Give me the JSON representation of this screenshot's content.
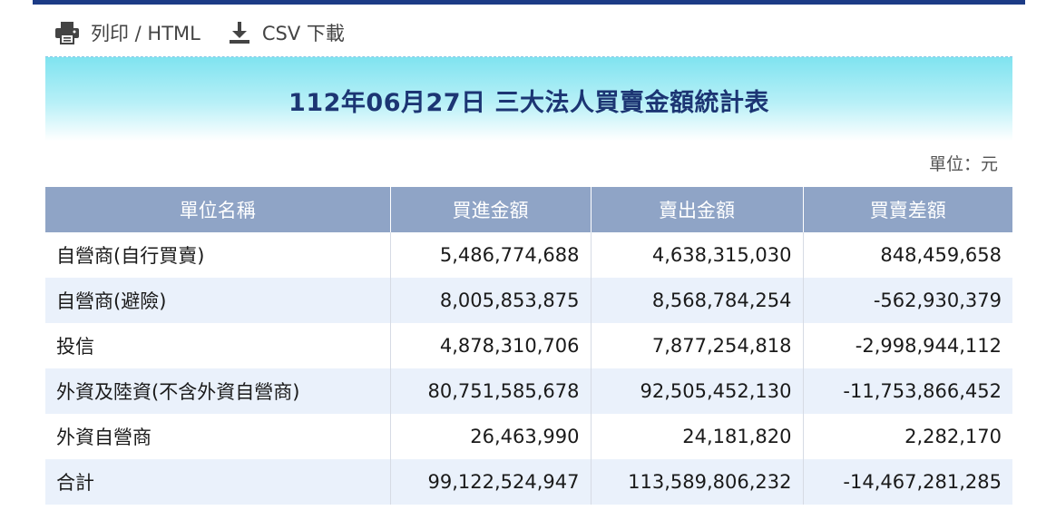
{
  "toolbar": {
    "print_label": "列印 / HTML",
    "print_icon": "printer-icon",
    "csv_label": "CSV 下載",
    "csv_icon": "download-icon"
  },
  "report": {
    "title": "112年06月27日 三大法人買賣金額統計表",
    "unit": "單位：元"
  },
  "table": {
    "headers": [
      "單位名稱",
      "買進金額",
      "賣出金額",
      "買賣差額"
    ],
    "rows": [
      [
        "自營商(自行買賣)",
        "5,486,774,688",
        "4,638,315,030",
        "848,459,658"
      ],
      [
        "自營商(避險)",
        "8,005,853,875",
        "8,568,784,254",
        "-562,930,379"
      ],
      [
        "投信",
        "4,878,310,706",
        "7,877,254,818",
        "-2,998,944,112"
      ],
      [
        "外資及陸資(不含外資自營商)",
        "80,751,585,678",
        "92,505,452,130",
        "-11,753,866,452"
      ],
      [
        "外資自營商",
        "26,463,990",
        "24,181,820",
        "2,282,170"
      ],
      [
        "合計",
        "99,122,524,947",
        "113,589,806,232",
        "-14,467,281,285"
      ]
    ]
  },
  "colors": {
    "accent": "#1c3b86",
    "header_bg": "#8fa4c6",
    "title_text": "#1c3573",
    "stripe": "#eaf1fb"
  }
}
